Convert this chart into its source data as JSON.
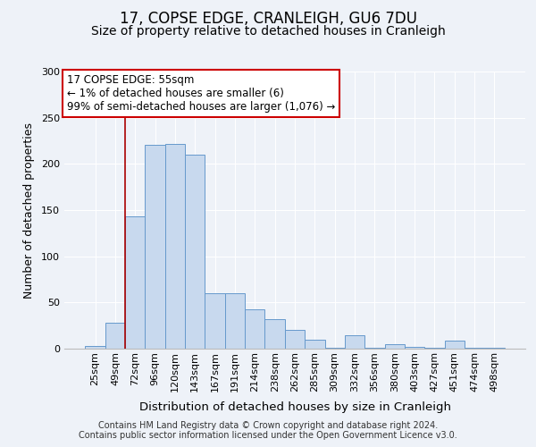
{
  "title": "17, COPSE EDGE, CRANLEIGH, GU6 7DU",
  "subtitle": "Size of property relative to detached houses in Cranleigh",
  "xlabel": "Distribution of detached houses by size in Cranleigh",
  "ylabel": "Number of detached properties",
  "bar_labels": [
    "25sqm",
    "49sqm",
    "72sqm",
    "96sqm",
    "120sqm",
    "143sqm",
    "167sqm",
    "191sqm",
    "214sqm",
    "238sqm",
    "262sqm",
    "285sqm",
    "309sqm",
    "332sqm",
    "356sqm",
    "380sqm",
    "403sqm",
    "427sqm",
    "451sqm",
    "474sqm",
    "498sqm"
  ],
  "bar_values": [
    3,
    28,
    143,
    221,
    222,
    210,
    60,
    60,
    43,
    32,
    20,
    10,
    1,
    15,
    1,
    5,
    2,
    1,
    9,
    1,
    1
  ],
  "bar_color": "#c8d9ee",
  "bar_edge_color": "#6699cc",
  "vline_x_index": 1.5,
  "vline_color": "#aa0000",
  "annotation_title": "17 COPSE EDGE: 55sqm",
  "annotation_line1": "← 1% of detached houses are smaller (6)",
  "annotation_line2": "99% of semi-detached houses are larger (1,076) →",
  "annotation_box_color": "#ffffff",
  "annotation_box_edge": "#cc0000",
  "ylim": [
    0,
    300
  ],
  "yticks": [
    0,
    50,
    100,
    150,
    200,
    250,
    300
  ],
  "footer1": "Contains HM Land Registry data © Crown copyright and database right 2024.",
  "footer2": "Contains public sector information licensed under the Open Government Licence v3.0.",
  "background_color": "#eef2f8",
  "grid_color": "#ffffff",
  "title_fontsize": 12,
  "subtitle_fontsize": 10,
  "xlabel_fontsize": 9.5,
  "ylabel_fontsize": 9,
  "tick_fontsize": 8,
  "footer_fontsize": 7,
  "annotation_fontsize": 8.5
}
